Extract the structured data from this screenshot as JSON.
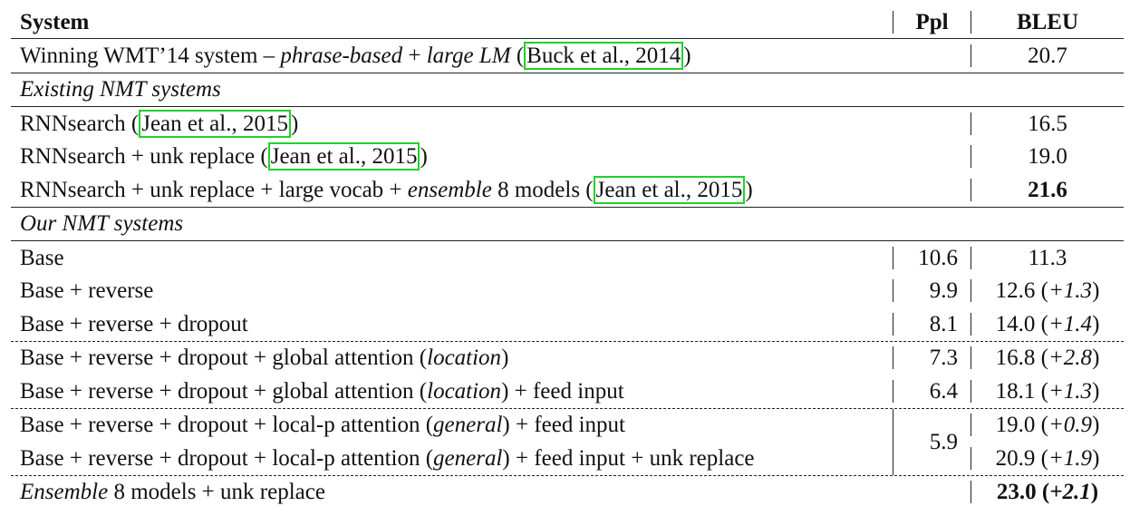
{
  "header": {
    "system": "System",
    "ppl": "Ppl",
    "bleu": "BLEU"
  },
  "wmt": {
    "pre": "Winning WMT’14 system – ",
    "it1": "phrase-based",
    "mid": " + ",
    "it2": "large LM",
    "sp": " ",
    "cite": "Buck et al., 2014",
    "bleu": "20.7"
  },
  "sections": {
    "existing": "Existing NMT systems",
    "ours": "Our NMT systems"
  },
  "existing": {
    "r1_pre": "RNNsearch ",
    "r1_cite": "Jean et al., 2015",
    "r1_bleu": "16.5",
    "r2_pre": "RNNsearch + unk replace ",
    "r2_cite": "Jean et al., 2015",
    "r2_bleu": "19.0",
    "r3_pre": "RNNsearch + unk replace + large vocab + ",
    "r3_it": "ensemble",
    "r3_post": " 8 models ",
    "r3_cite": "Jean et al., 2015",
    "r3_bleu": "21.6"
  },
  "ours": {
    "base": {
      "label": "Base",
      "ppl": "10.6",
      "bleu": "11.3"
    },
    "reverse": {
      "label": "Base + reverse",
      "ppl": "9.9",
      "bleu_main": "12.6",
      "bleu_delta": "+1.3"
    },
    "dropout": {
      "label": "Base + reverse + dropout",
      "ppl": "8.1",
      "bleu_main": "14.0",
      "bleu_delta": "+1.4"
    },
    "global": {
      "pre": "Base + reverse + dropout + global attention (",
      "it": "location",
      "post": ")",
      "ppl": "7.3",
      "bleu_main": "16.8",
      "bleu_delta": "+2.8"
    },
    "global_feed": {
      "pre": "Base + reverse + dropout + global attention (",
      "it": "location",
      "post": ") + feed input",
      "ppl": "6.4",
      "bleu_main": "18.1",
      "bleu_delta": "+1.3"
    },
    "local_ppl": "5.9",
    "local_feed": {
      "pre": "Base + reverse + dropout + local-p attention (",
      "it": "general",
      "post": ") + feed input",
      "bleu_main": "19.0",
      "bleu_delta": "+0.9"
    },
    "local_unk": {
      "pre": "Base + reverse + dropout + local-p attention (",
      "it": "general",
      "post": ") + feed input + unk replace",
      "bleu_main": "20.9",
      "bleu_delta": "+1.9"
    },
    "ensemble": {
      "it": "Ensemble",
      "post": " 8 models + unk replace",
      "bleu_main": "23.0",
      "bleu_delta": "+2.1"
    }
  }
}
